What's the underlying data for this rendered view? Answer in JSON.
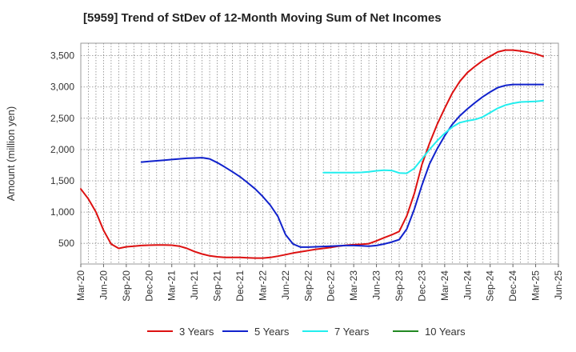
{
  "chart_data": {
    "type": "line",
    "title": "[5959]  Trend of StDev of 12-Month Moving Sum of Net Incomes",
    "xlabel": "",
    "ylabel": "Amount (million yen)",
    "ylim": [
      170,
      3700
    ],
    "yticks": [
      500,
      1000,
      1500,
      2000,
      2500,
      3000,
      3500
    ],
    "ytick_labels": [
      "500",
      "1,000",
      "1,500",
      "2,000",
      "2,500",
      "3,000",
      "3,500"
    ],
    "xlim": [
      "2020-03",
      "2025-06"
    ],
    "xticks": [
      "2020-03",
      "2020-06",
      "2020-09",
      "2020-12",
      "2021-03",
      "2021-06",
      "2021-09",
      "2021-12",
      "2022-03",
      "2022-06",
      "2022-09",
      "2022-12",
      "2023-03",
      "2023-06",
      "2023-09",
      "2023-12",
      "2024-03",
      "2024-06",
      "2024-09",
      "2024-12",
      "2025-03",
      "2025-06"
    ],
    "xtick_labels": [
      "Mar-20",
      "Jun-20",
      "Sep-20",
      "Dec-20",
      "Mar-21",
      "Jun-21",
      "Sep-21",
      "Dec-21",
      "Mar-22",
      "Jun-22",
      "Sep-22",
      "Dec-22",
      "Mar-23",
      "Jun-23",
      "Sep-23",
      "Dec-23",
      "Mar-24",
      "Jun-24",
      "Sep-24",
      "Dec-24",
      "Mar-25",
      "Jun-25"
    ],
    "grid": true,
    "legend_position": "bottom",
    "series": [
      {
        "name": "3 Years",
        "color": "#dd1111",
        "points": [
          [
            "2020-03",
            1370
          ],
          [
            "2020-04",
            1210
          ],
          [
            "2020-05",
            1000
          ],
          [
            "2020-06",
            710
          ],
          [
            "2020-07",
            490
          ],
          [
            "2020-08",
            420
          ],
          [
            "2020-09",
            445
          ],
          [
            "2020-10",
            455
          ],
          [
            "2020-11",
            465
          ],
          [
            "2020-12",
            470
          ],
          [
            "2021-01",
            475
          ],
          [
            "2021-02",
            475
          ],
          [
            "2021-03",
            470
          ],
          [
            "2021-04",
            455
          ],
          [
            "2021-05",
            420
          ],
          [
            "2021-06",
            370
          ],
          [
            "2021-07",
            330
          ],
          [
            "2021-08",
            300
          ],
          [
            "2021-09",
            285
          ],
          [
            "2021-10",
            275
          ],
          [
            "2021-11",
            275
          ],
          [
            "2021-12",
            275
          ],
          [
            "2022-01",
            270
          ],
          [
            "2022-02",
            265
          ],
          [
            "2022-03",
            265
          ],
          [
            "2022-04",
            275
          ],
          [
            "2022-05",
            295
          ],
          [
            "2022-06",
            320
          ],
          [
            "2022-07",
            345
          ],
          [
            "2022-08",
            365
          ],
          [
            "2022-09",
            385
          ],
          [
            "2022-10",
            405
          ],
          [
            "2022-11",
            420
          ],
          [
            "2022-12",
            435
          ],
          [
            "2023-01",
            455
          ],
          [
            "2023-02",
            470
          ],
          [
            "2023-03",
            478
          ],
          [
            "2023-04",
            485
          ],
          [
            "2023-05",
            495
          ],
          [
            "2023-06",
            540
          ],
          [
            "2023-07",
            590
          ],
          [
            "2023-08",
            635
          ],
          [
            "2023-09",
            690
          ],
          [
            "2023-10",
            940
          ],
          [
            "2023-11",
            1300
          ],
          [
            "2023-12",
            1760
          ],
          [
            "2024-01",
            2100
          ],
          [
            "2024-02",
            2400
          ],
          [
            "2024-03",
            2660
          ],
          [
            "2024-04",
            2900
          ],
          [
            "2024-05",
            3090
          ],
          [
            "2024-06",
            3230
          ],
          [
            "2024-07",
            3330
          ],
          [
            "2024-08",
            3420
          ],
          [
            "2024-09",
            3490
          ],
          [
            "2024-10",
            3560
          ],
          [
            "2024-11",
            3590
          ],
          [
            "2024-12",
            3590
          ],
          [
            "2025-01",
            3575
          ],
          [
            "2025-02",
            3555
          ],
          [
            "2025-03",
            3530
          ],
          [
            "2025-04",
            3490
          ]
        ]
      },
      {
        "name": "5 Years",
        "color": "#1122cc",
        "points": [
          [
            "2020-11",
            1800
          ],
          [
            "2020-12",
            1810
          ],
          [
            "2021-01",
            1820
          ],
          [
            "2021-02",
            1830
          ],
          [
            "2021-03",
            1840
          ],
          [
            "2021-04",
            1850
          ],
          [
            "2021-05",
            1860
          ],
          [
            "2021-06",
            1865
          ],
          [
            "2021-07",
            1870
          ],
          [
            "2021-08",
            1850
          ],
          [
            "2021-09",
            1790
          ],
          [
            "2021-10",
            1720
          ],
          [
            "2021-11",
            1645
          ],
          [
            "2021-12",
            1565
          ],
          [
            "2022-01",
            1470
          ],
          [
            "2022-02",
            1370
          ],
          [
            "2022-03",
            1250
          ],
          [
            "2022-04",
            1110
          ],
          [
            "2022-05",
            930
          ],
          [
            "2022-06",
            640
          ],
          [
            "2022-07",
            490
          ],
          [
            "2022-08",
            440
          ],
          [
            "2022-09",
            440
          ],
          [
            "2022-10",
            445
          ],
          [
            "2022-11",
            450
          ],
          [
            "2022-12",
            455
          ],
          [
            "2023-01",
            460
          ],
          [
            "2023-02",
            465
          ],
          [
            "2023-03",
            465
          ],
          [
            "2023-04",
            460
          ],
          [
            "2023-05",
            455
          ],
          [
            "2023-06",
            465
          ],
          [
            "2023-07",
            490
          ],
          [
            "2023-08",
            520
          ],
          [
            "2023-09",
            560
          ],
          [
            "2023-10",
            730
          ],
          [
            "2023-11",
            1050
          ],
          [
            "2023-12",
            1430
          ],
          [
            "2024-01",
            1770
          ],
          [
            "2024-02",
            2010
          ],
          [
            "2024-03",
            2220
          ],
          [
            "2024-04",
            2400
          ],
          [
            "2024-05",
            2540
          ],
          [
            "2024-06",
            2650
          ],
          [
            "2024-07",
            2750
          ],
          [
            "2024-08",
            2840
          ],
          [
            "2024-09",
            2920
          ],
          [
            "2024-10",
            2990
          ],
          [
            "2024-11",
            3025
          ],
          [
            "2024-12",
            3040
          ],
          [
            "2025-01",
            3040
          ],
          [
            "2025-02",
            3040
          ],
          [
            "2025-03",
            3040
          ],
          [
            "2025-04",
            3040
          ]
        ]
      },
      {
        "name": "7 Years",
        "color": "#22eeee",
        "points": [
          [
            "2022-11",
            1630
          ],
          [
            "2022-12",
            1630
          ],
          [
            "2023-01",
            1630
          ],
          [
            "2023-02",
            1630
          ],
          [
            "2023-03",
            1630
          ],
          [
            "2023-04",
            1635
          ],
          [
            "2023-05",
            1645
          ],
          [
            "2023-06",
            1660
          ],
          [
            "2023-07",
            1670
          ],
          [
            "2023-08",
            1665
          ],
          [
            "2023-09",
            1625
          ],
          [
            "2023-10",
            1620
          ],
          [
            "2023-11",
            1700
          ],
          [
            "2023-12",
            1850
          ],
          [
            "2024-01",
            2000
          ],
          [
            "2024-02",
            2140
          ],
          [
            "2024-03",
            2260
          ],
          [
            "2024-04",
            2360
          ],
          [
            "2024-05",
            2430
          ],
          [
            "2024-06",
            2460
          ],
          [
            "2024-07",
            2480
          ],
          [
            "2024-08",
            2520
          ],
          [
            "2024-09",
            2590
          ],
          [
            "2024-10",
            2660
          ],
          [
            "2024-11",
            2710
          ],
          [
            "2024-12",
            2740
          ],
          [
            "2025-01",
            2760
          ],
          [
            "2025-02",
            2765
          ],
          [
            "2025-03",
            2770
          ],
          [
            "2025-04",
            2780
          ]
        ]
      },
      {
        "name": "10 Years",
        "color": "#228822",
        "points": []
      }
    ]
  }
}
